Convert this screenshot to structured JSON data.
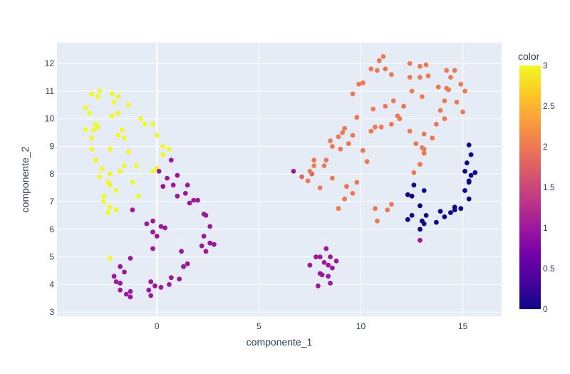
{
  "chart_data": {
    "type": "scatter",
    "xlabel": "componente_1",
    "ylabel": "componente_2",
    "xlim": [
      -4.9,
      16.9
    ],
    "ylim": [
      2.85,
      12.75
    ],
    "x_ticks": [
      0,
      5,
      10,
      15
    ],
    "y_ticks": [
      3,
      4,
      5,
      6,
      7,
      8,
      9,
      10,
      11,
      12
    ],
    "grid": true,
    "plot_bg": "#e5ecf6",
    "colorbar": {
      "title": "color",
      "range": [
        0,
        3
      ],
      "ticks": [
        "0",
        "0.5",
        "1",
        "1.5",
        "2",
        "2.5",
        "3"
      ],
      "scale": [
        "#0d0887",
        "#46039f",
        "#7201a8",
        "#9c179e",
        "#bd3786",
        "#d8576b",
        "#ed7953",
        "#fb9f3a",
        "#fdca26",
        "#f0f921"
      ]
    },
    "points": [
      {
        "x": -3.5,
        "y": 10.4,
        "c": 3
      },
      {
        "x": -3.2,
        "y": 10.9,
        "c": 3
      },
      {
        "x": -2.9,
        "y": 10.8,
        "c": 3
      },
      {
        "x": -2.8,
        "y": 11.0,
        "c": 3
      },
      {
        "x": -2.2,
        "y": 10.9,
        "c": 3
      },
      {
        "x": -1.9,
        "y": 10.8,
        "c": 3
      },
      {
        "x": -1.4,
        "y": 10.5,
        "c": 3
      },
      {
        "x": -2.1,
        "y": 10.6,
        "c": 3
      },
      {
        "x": -3.3,
        "y": 10.2,
        "c": 3
      },
      {
        "x": -3.0,
        "y": 9.8,
        "c": 3
      },
      {
        "x": -2.2,
        "y": 10.1,
        "c": 3
      },
      {
        "x": -1.9,
        "y": 10.2,
        "c": 3
      },
      {
        "x": -3.5,
        "y": 9.6,
        "c": 3
      },
      {
        "x": -3.1,
        "y": 9.6,
        "c": 3
      },
      {
        "x": -2.9,
        "y": 9.7,
        "c": 3
      },
      {
        "x": -3.2,
        "y": 9.3,
        "c": 3
      },
      {
        "x": -1.7,
        "y": 9.6,
        "c": 3
      },
      {
        "x": -1.9,
        "y": 9.4,
        "c": 3
      },
      {
        "x": -1.6,
        "y": 9.3,
        "c": 3
      },
      {
        "x": -2.3,
        "y": 8.9,
        "c": 3
      },
      {
        "x": -3.2,
        "y": 8.9,
        "c": 3
      },
      {
        "x": -1.4,
        "y": 8.8,
        "c": 3
      },
      {
        "x": -3.0,
        "y": 8.5,
        "c": 3
      },
      {
        "x": -1.6,
        "y": 8.3,
        "c": 3
      },
      {
        "x": -1.0,
        "y": 8.3,
        "c": 3
      },
      {
        "x": -1.8,
        "y": 8.1,
        "c": 3
      },
      {
        "x": -2.7,
        "y": 8.2,
        "c": 3
      },
      {
        "x": -2.3,
        "y": 8.0,
        "c": 3
      },
      {
        "x": -2.8,
        "y": 7.9,
        "c": 3
      },
      {
        "x": -2.4,
        "y": 7.7,
        "c": 3
      },
      {
        "x": -2.3,
        "y": 7.6,
        "c": 3
      },
      {
        "x": -1.2,
        "y": 7.7,
        "c": 3
      },
      {
        "x": -2.0,
        "y": 7.4,
        "c": 3
      },
      {
        "x": -2.6,
        "y": 7.2,
        "c": 3
      },
      {
        "x": -0.9,
        "y": 7.2,
        "c": 3
      },
      {
        "x": -2.6,
        "y": 7.0,
        "c": 3
      },
      {
        "x": -2.3,
        "y": 6.8,
        "c": 3
      },
      {
        "x": -2.0,
        "y": 6.7,
        "c": 3
      },
      {
        "x": -2.4,
        "y": 6.6,
        "c": 3
      },
      {
        "x": -0.8,
        "y": 10.0,
        "c": 3
      },
      {
        "x": -0.6,
        "y": 9.8,
        "c": 3
      },
      {
        "x": -0.2,
        "y": 9.8,
        "c": 3
      },
      {
        "x": 0.0,
        "y": 9.4,
        "c": 3
      },
      {
        "x": 0.3,
        "y": 9.0,
        "c": 3
      },
      {
        "x": 0.6,
        "y": 8.9,
        "c": 3
      },
      {
        "x": 0.3,
        "y": 8.7,
        "c": 3
      },
      {
        "x": 0.0,
        "y": 8.2,
        "c": 3
      },
      {
        "x": -0.2,
        "y": 8.1,
        "c": 3
      },
      {
        "x": -2.3,
        "y": 4.95,
        "c": 3
      },
      {
        "x": 0.7,
        "y": 8.5,
        "c": 1
      },
      {
        "x": 1.0,
        "y": 7.95,
        "c": 1
      },
      {
        "x": 0.1,
        "y": 8.1,
        "c": 1
      },
      {
        "x": 0.5,
        "y": 7.85,
        "c": 1
      },
      {
        "x": 0.8,
        "y": 7.6,
        "c": 1
      },
      {
        "x": 0.3,
        "y": 7.55,
        "c": 1
      },
      {
        "x": 1.5,
        "y": 7.6,
        "c": 1
      },
      {
        "x": 1.4,
        "y": 7.3,
        "c": 1
      },
      {
        "x": 1.0,
        "y": 7.2,
        "c": 1
      },
      {
        "x": 1.8,
        "y": 7.05,
        "c": 1
      },
      {
        "x": 2.0,
        "y": 7.05,
        "c": 1
      },
      {
        "x": 1.6,
        "y": 6.95,
        "c": 1
      },
      {
        "x": -1.2,
        "y": 6.7,
        "c": 1
      },
      {
        "x": 2.3,
        "y": 6.55,
        "c": 1
      },
      {
        "x": 2.4,
        "y": 6.5,
        "c": 1
      },
      {
        "x": -0.5,
        "y": 6.2,
        "c": 1
      },
      {
        "x": -0.2,
        "y": 6.3,
        "c": 1
      },
      {
        "x": 0.2,
        "y": 6.1,
        "c": 1
      },
      {
        "x": 0.4,
        "y": 6.05,
        "c": 1
      },
      {
        "x": 2.6,
        "y": 6.1,
        "c": 1
      },
      {
        "x": -0.2,
        "y": 5.9,
        "c": 1
      },
      {
        "x": 0.0,
        "y": 5.75,
        "c": 1
      },
      {
        "x": 2.3,
        "y": 5.75,
        "c": 1
      },
      {
        "x": 2.6,
        "y": 5.5,
        "c": 1
      },
      {
        "x": 2.8,
        "y": 5.45,
        "c": 1
      },
      {
        "x": 2.2,
        "y": 5.4,
        "c": 1
      },
      {
        "x": 2.4,
        "y": 5.2,
        "c": 1
      },
      {
        "x": -0.2,
        "y": 5.3,
        "c": 1
      },
      {
        "x": 1.2,
        "y": 5.2,
        "c": 1
      },
      {
        "x": -1.3,
        "y": 4.95,
        "c": 1
      },
      {
        "x": 1.5,
        "y": 4.75,
        "c": 1
      },
      {
        "x": 1.3,
        "y": 4.65,
        "c": 1
      },
      {
        "x": -1.8,
        "y": 4.65,
        "c": 1
      },
      {
        "x": -1.6,
        "y": 4.45,
        "c": 1
      },
      {
        "x": -2.1,
        "y": 4.3,
        "c": 1
      },
      {
        "x": 0.7,
        "y": 4.25,
        "c": 1
      },
      {
        "x": 1.1,
        "y": 4.2,
        "c": 1
      },
      {
        "x": -2.0,
        "y": 4.1,
        "c": 1
      },
      {
        "x": -1.8,
        "y": 4.05,
        "c": 1
      },
      {
        "x": -0.3,
        "y": 4.1,
        "c": 1
      },
      {
        "x": 0.6,
        "y": 4.0,
        "c": 1
      },
      {
        "x": -0.1,
        "y": 3.95,
        "c": 1
      },
      {
        "x": 0.2,
        "y": 3.9,
        "c": 1
      },
      {
        "x": -1.8,
        "y": 3.8,
        "c": 1
      },
      {
        "x": -0.4,
        "y": 3.8,
        "c": 1
      },
      {
        "x": -1.3,
        "y": 3.75,
        "c": 1
      },
      {
        "x": -1.5,
        "y": 3.65,
        "c": 1
      },
      {
        "x": -0.3,
        "y": 3.6,
        "c": 1
      },
      {
        "x": -1.3,
        "y": 3.55,
        "c": 1
      },
      {
        "x": 6.7,
        "y": 8.1,
        "c": 1
      },
      {
        "x": 8.3,
        "y": 5.3,
        "c": 1
      },
      {
        "x": 7.8,
        "y": 5.0,
        "c": 1
      },
      {
        "x": 8.0,
        "y": 5.0,
        "c": 1
      },
      {
        "x": 8.5,
        "y": 5.0,
        "c": 1
      },
      {
        "x": 8.8,
        "y": 4.85,
        "c": 1
      },
      {
        "x": 8.2,
        "y": 4.8,
        "c": 1
      },
      {
        "x": 7.5,
        "y": 4.7,
        "c": 1
      },
      {
        "x": 8.4,
        "y": 4.7,
        "c": 1
      },
      {
        "x": 8.6,
        "y": 4.6,
        "c": 1
      },
      {
        "x": 8.0,
        "y": 4.4,
        "c": 1
      },
      {
        "x": 8.1,
        "y": 4.35,
        "c": 1
      },
      {
        "x": 8.4,
        "y": 4.3,
        "c": 1
      },
      {
        "x": 8.5,
        "y": 4.05,
        "c": 1
      },
      {
        "x": 7.9,
        "y": 3.95,
        "c": 1
      },
      {
        "x": 12.9,
        "y": 5.6,
        "c": 1
      },
      {
        "x": 7.1,
        "y": 7.9,
        "c": 1.8
      },
      {
        "x": 7.6,
        "y": 8.0,
        "c": 1.8
      },
      {
        "x": 11.1,
        "y": 12.25,
        "c": 2
      },
      {
        "x": 10.9,
        "y": 12.1,
        "c": 2
      },
      {
        "x": 12.4,
        "y": 12.0,
        "c": 2
      },
      {
        "x": 10.5,
        "y": 11.8,
        "c": 2
      },
      {
        "x": 10.8,
        "y": 11.75,
        "c": 2
      },
      {
        "x": 11.2,
        "y": 11.8,
        "c": 2
      },
      {
        "x": 11.5,
        "y": 11.6,
        "c": 2
      },
      {
        "x": 12.9,
        "y": 11.9,
        "c": 2
      },
      {
        "x": 13.2,
        "y": 11.95,
        "c": 2
      },
      {
        "x": 14.6,
        "y": 11.75,
        "c": 2
      },
      {
        "x": 14.2,
        "y": 11.75,
        "c": 2
      },
      {
        "x": 13.3,
        "y": 11.55,
        "c": 2
      },
      {
        "x": 12.4,
        "y": 11.5,
        "c": 2
      },
      {
        "x": 12.9,
        "y": 11.5,
        "c": 2
      },
      {
        "x": 14.4,
        "y": 11.5,
        "c": 2
      },
      {
        "x": 10.1,
        "y": 11.3,
        "c": 2
      },
      {
        "x": 9.9,
        "y": 11.25,
        "c": 2
      },
      {
        "x": 14.9,
        "y": 11.25,
        "c": 2
      },
      {
        "x": 13.8,
        "y": 11.15,
        "c": 2
      },
      {
        "x": 14.2,
        "y": 11.1,
        "c": 2
      },
      {
        "x": 14.3,
        "y": 11.05,
        "c": 2
      },
      {
        "x": 12.5,
        "y": 11.0,
        "c": 2
      },
      {
        "x": 15.1,
        "y": 11.0,
        "c": 2
      },
      {
        "x": 9.6,
        "y": 10.9,
        "c": 2
      },
      {
        "x": 13.0,
        "y": 10.8,
        "c": 2
      },
      {
        "x": 14.1,
        "y": 10.65,
        "c": 2
      },
      {
        "x": 11.6,
        "y": 10.65,
        "c": 2
      },
      {
        "x": 14.7,
        "y": 10.6,
        "c": 2
      },
      {
        "x": 11.2,
        "y": 10.45,
        "c": 2
      },
      {
        "x": 12.1,
        "y": 10.45,
        "c": 2
      },
      {
        "x": 10.6,
        "y": 10.35,
        "c": 2
      },
      {
        "x": 13.9,
        "y": 10.3,
        "c": 2
      },
      {
        "x": 15.0,
        "y": 10.25,
        "c": 2
      },
      {
        "x": 11.8,
        "y": 10.1,
        "c": 2
      },
      {
        "x": 9.8,
        "y": 10.05,
        "c": 2
      },
      {
        "x": 11.9,
        "y": 10.0,
        "c": 2
      },
      {
        "x": 14.1,
        "y": 10.0,
        "c": 2
      },
      {
        "x": 11.5,
        "y": 9.8,
        "c": 2
      },
      {
        "x": 10.7,
        "y": 9.7,
        "c": 2
      },
      {
        "x": 13.7,
        "y": 9.8,
        "c": 2
      },
      {
        "x": 11.0,
        "y": 9.7,
        "c": 2
      },
      {
        "x": 9.2,
        "y": 9.65,
        "c": 2
      },
      {
        "x": 9.1,
        "y": 9.5,
        "c": 2
      },
      {
        "x": 10.5,
        "y": 9.55,
        "c": 2
      },
      {
        "x": 12.4,
        "y": 9.55,
        "c": 2
      },
      {
        "x": 13.1,
        "y": 9.45,
        "c": 2
      },
      {
        "x": 9.6,
        "y": 9.4,
        "c": 2
      },
      {
        "x": 8.9,
        "y": 9.35,
        "c": 2
      },
      {
        "x": 13.5,
        "y": 9.3,
        "c": 2
      },
      {
        "x": 8.5,
        "y": 9.2,
        "c": 2
      },
      {
        "x": 9.4,
        "y": 9.1,
        "c": 2
      },
      {
        "x": 12.7,
        "y": 9.1,
        "c": 2
      },
      {
        "x": 8.6,
        "y": 9.0,
        "c": 2
      },
      {
        "x": 13.0,
        "y": 8.95,
        "c": 2
      },
      {
        "x": 9.0,
        "y": 8.9,
        "c": 2
      },
      {
        "x": 13.1,
        "y": 8.9,
        "c": 2
      },
      {
        "x": 10.1,
        "y": 8.85,
        "c": 2
      },
      {
        "x": 13.1,
        "y": 8.75,
        "c": 2
      },
      {
        "x": 7.7,
        "y": 8.5,
        "c": 2
      },
      {
        "x": 8.3,
        "y": 8.5,
        "c": 2
      },
      {
        "x": 10.3,
        "y": 8.45,
        "c": 2
      },
      {
        "x": 12.9,
        "y": 8.35,
        "c": 2
      },
      {
        "x": 7.7,
        "y": 8.3,
        "c": 2
      },
      {
        "x": 8.2,
        "y": 8.3,
        "c": 2
      },
      {
        "x": 7.5,
        "y": 8.1,
        "c": 2
      },
      {
        "x": 12.6,
        "y": 8.05,
        "c": 2
      },
      {
        "x": 8.6,
        "y": 7.85,
        "c": 2
      },
      {
        "x": 7.4,
        "y": 7.75,
        "c": 2
      },
      {
        "x": 9.8,
        "y": 7.7,
        "c": 2
      },
      {
        "x": 9.3,
        "y": 7.55,
        "c": 2
      },
      {
        "x": 8.0,
        "y": 7.5,
        "c": 2
      },
      {
        "x": 9.6,
        "y": 7.3,
        "c": 2
      },
      {
        "x": 9.2,
        "y": 7.1,
        "c": 2
      },
      {
        "x": 11.5,
        "y": 6.9,
        "c": 2
      },
      {
        "x": 8.9,
        "y": 6.75,
        "c": 2
      },
      {
        "x": 10.7,
        "y": 6.75,
        "c": 2
      },
      {
        "x": 11.3,
        "y": 6.7,
        "c": 2
      },
      {
        "x": 10.8,
        "y": 6.3,
        "c": 2
      },
      {
        "x": 15.3,
        "y": 9.05,
        "c": 0
      },
      {
        "x": 15.4,
        "y": 8.7,
        "c": 0
      },
      {
        "x": 15.2,
        "y": 8.4,
        "c": 0
      },
      {
        "x": 15.1,
        "y": 8.1,
        "c": 0
      },
      {
        "x": 15.6,
        "y": 8.05,
        "c": 0
      },
      {
        "x": 15.4,
        "y": 7.95,
        "c": 0
      },
      {
        "x": 15.3,
        "y": 7.75,
        "c": 0
      },
      {
        "x": 15.3,
        "y": 7.7,
        "c": 0
      },
      {
        "x": 12.6,
        "y": 7.6,
        "c": 0
      },
      {
        "x": 15.1,
        "y": 7.4,
        "c": 0
      },
      {
        "x": 13.1,
        "y": 7.4,
        "c": 0
      },
      {
        "x": 12.3,
        "y": 7.25,
        "c": 0
      },
      {
        "x": 12.5,
        "y": 7.2,
        "c": 0
      },
      {
        "x": 15.3,
        "y": 7.1,
        "c": 0
      },
      {
        "x": 12.9,
        "y": 6.85,
        "c": 0
      },
      {
        "x": 14.6,
        "y": 6.8,
        "c": 0
      },
      {
        "x": 14.9,
        "y": 6.75,
        "c": 0
      },
      {
        "x": 14.6,
        "y": 6.7,
        "c": 0
      },
      {
        "x": 13.9,
        "y": 6.65,
        "c": 0
      },
      {
        "x": 14.4,
        "y": 6.6,
        "c": 0
      },
      {
        "x": 13.2,
        "y": 6.5,
        "c": 0
      },
      {
        "x": 12.5,
        "y": 6.5,
        "c": 0
      },
      {
        "x": 14.1,
        "y": 6.45,
        "c": 0
      },
      {
        "x": 12.3,
        "y": 6.35,
        "c": 0
      },
      {
        "x": 13.0,
        "y": 6.3,
        "c": 0
      },
      {
        "x": 13.7,
        "y": 6.25,
        "c": 0
      },
      {
        "x": 13.1,
        "y": 6.2,
        "c": 0
      },
      {
        "x": 12.9,
        "y": 6.0,
        "c": 0
      }
    ]
  }
}
